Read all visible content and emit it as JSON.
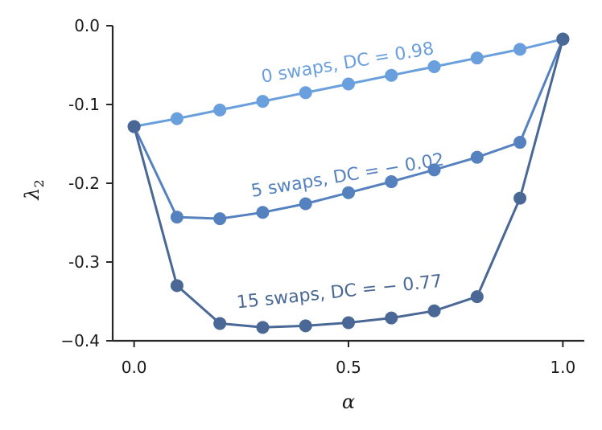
{
  "chart_data": {
    "type": "line",
    "title": "",
    "xlabel": "α",
    "ylabel": "λ",
    "ylabel_subscript": "2",
    "xlim": [
      -0.05,
      1.05
    ],
    "ylim": [
      -0.4,
      0.0
    ],
    "xticks": [
      0.0,
      0.5,
      1.0
    ],
    "xtick_labels": [
      "0.0",
      "0.5",
      "1.0"
    ],
    "yticks": [
      0.0,
      -0.1,
      -0.2,
      -0.3,
      -0.4
    ],
    "ytick_labels": [
      "0.0",
      "-0.1",
      "-0.2",
      "-0.3",
      "−0.4"
    ],
    "grid": false,
    "x": [
      0.0,
      0.1,
      0.2,
      0.3,
      0.4,
      0.5,
      0.6,
      0.7,
      0.8,
      0.9,
      1.0
    ],
    "series": [
      {
        "name": "0 swaps, DC = 0.98",
        "label": "0 swaps, DC = 0.98",
        "color": "#6a9fdd",
        "label_anchor": {
          "x": 0.5,
          "y": -0.054
        },
        "label_angle": -9.5,
        "values": [
          -0.128,
          -0.118,
          -0.107,
          -0.096,
          -0.085,
          -0.074,
          -0.063,
          -0.052,
          -0.041,
          -0.03,
          -0.017
        ]
      },
      {
        "name": "5 swaps, DC = -0.02",
        "label": "5 swaps, DC = − 0.02",
        "color": "#5582bf",
        "label_anchor": {
          "x": 0.5,
          "y": -0.197
        },
        "label_angle": -9.5,
        "values": [
          -0.128,
          -0.243,
          -0.245,
          -0.237,
          -0.226,
          -0.212,
          -0.198,
          -0.183,
          -0.167,
          -0.148,
          -0.017
        ]
      },
      {
        "name": "15 swaps, DC = -0.77",
        "label": "15 swaps, DC = − 0.77",
        "color": "#4a6896",
        "label_anchor": {
          "x": 0.48,
          "y": -0.345
        },
        "label_angle": -6,
        "values": [
          -0.128,
          -0.33,
          -0.378,
          -0.383,
          -0.381,
          -0.377,
          -0.371,
          -0.362,
          -0.344,
          -0.219,
          -0.017
        ]
      }
    ]
  }
}
